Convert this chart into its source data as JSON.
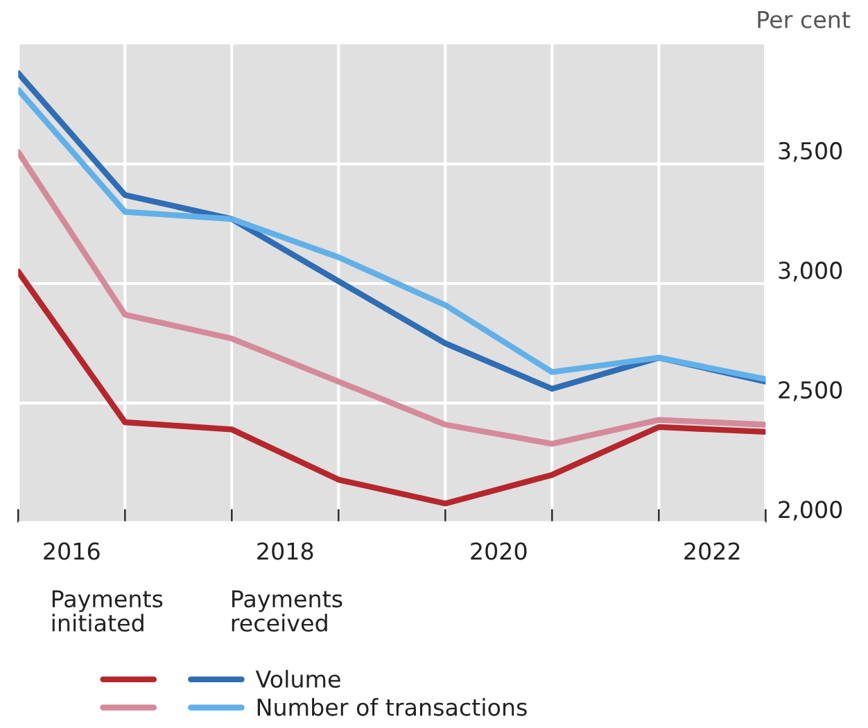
{
  "chart_data": {
    "type": "line",
    "ylabel": "Per cent",
    "x": [
      2016,
      2017,
      2018,
      2019,
      2020,
      2021,
      2022,
      2023
    ],
    "series": [
      {
        "color": "#b5272d",
        "values": [
          3050,
          2420,
          2390,
          2180,
          2080,
          2200,
          2400,
          2380
        ]
      },
      {
        "color": "#d48a9a",
        "values": [
          3550,
          2870,
          2770,
          2590,
          2410,
          2330,
          2430,
          2410
        ]
      },
      {
        "name": "Volume",
        "color": "#2f6db5",
        "values": [
          3880,
          3370,
          3270,
          3010,
          2750,
          2560,
          2690,
          2590
        ]
      },
      {
        "name": "Number of transactions",
        "color": "#62b0e8",
        "values": [
          3810,
          3300,
          3270,
          3110,
          2910,
          2630,
          2690,
          2600
        ]
      }
    ],
    "annotations": [
      "Payments initiated",
      "Payments received"
    ],
    "xlim": [
      2016,
      2023
    ],
    "ylim": [
      2000,
      4000
    ],
    "xticks": [
      {
        "value": 2016,
        "label": null
      },
      {
        "value": 2016.5,
        "label": "2016"
      },
      {
        "value": 2017,
        "label": null
      },
      {
        "value": 2018,
        "label": null
      },
      {
        "value": 2018.5,
        "label": "2018"
      },
      {
        "value": 2019,
        "label": null
      },
      {
        "value": 2020,
        "label": null
      },
      {
        "value": 2020.5,
        "label": "2020"
      },
      {
        "value": 2021,
        "label": null
      },
      {
        "value": 2022,
        "label": null
      },
      {
        "value": 2022.5,
        "label": "2022"
      },
      {
        "value": 2023,
        "label": null
      }
    ],
    "yticks": [
      {
        "value": 2000,
        "label": "2,000"
      },
      {
        "value": 2500,
        "label": "2,500"
      },
      {
        "value": 3000,
        "label": "3,000"
      },
      {
        "value": 3500,
        "label": "3,500"
      }
    ],
    "grid": true,
    "legend": "bottom left",
    "marker": "none",
    "line_style": "solid"
  }
}
